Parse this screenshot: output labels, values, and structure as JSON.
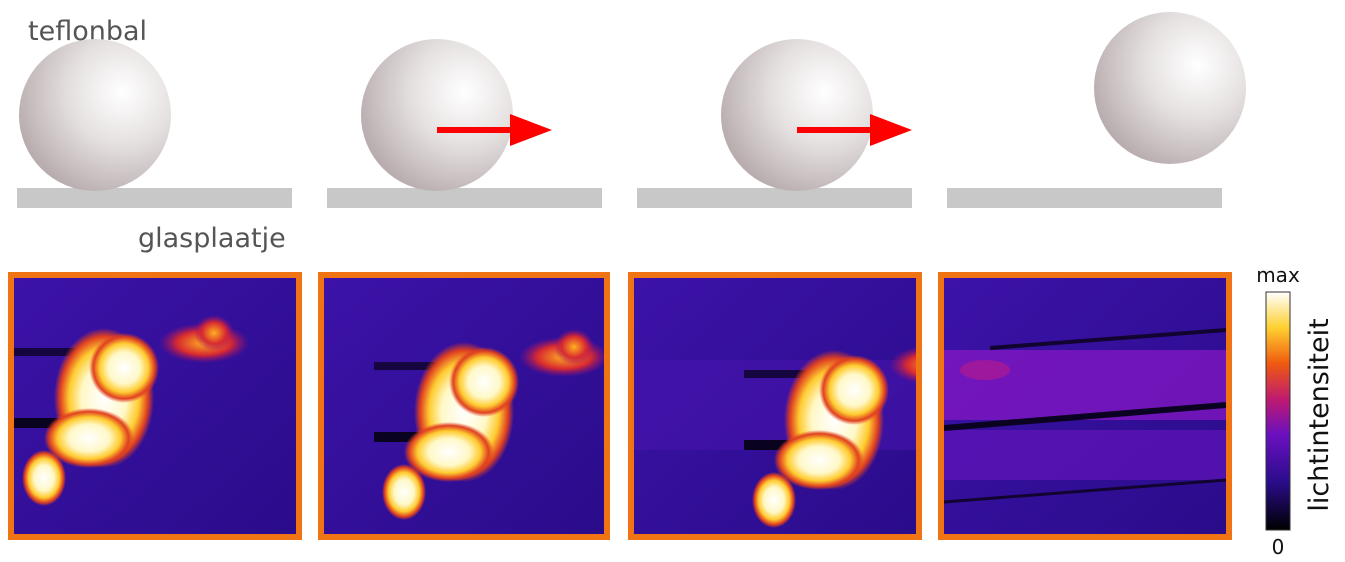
{
  "labels": {
    "ball": "teflonbal",
    "plate": "glasplaatje"
  },
  "colorbar": {
    "max_label": "max",
    "min_label": "0",
    "label": "lichtintensiteit"
  }
}
